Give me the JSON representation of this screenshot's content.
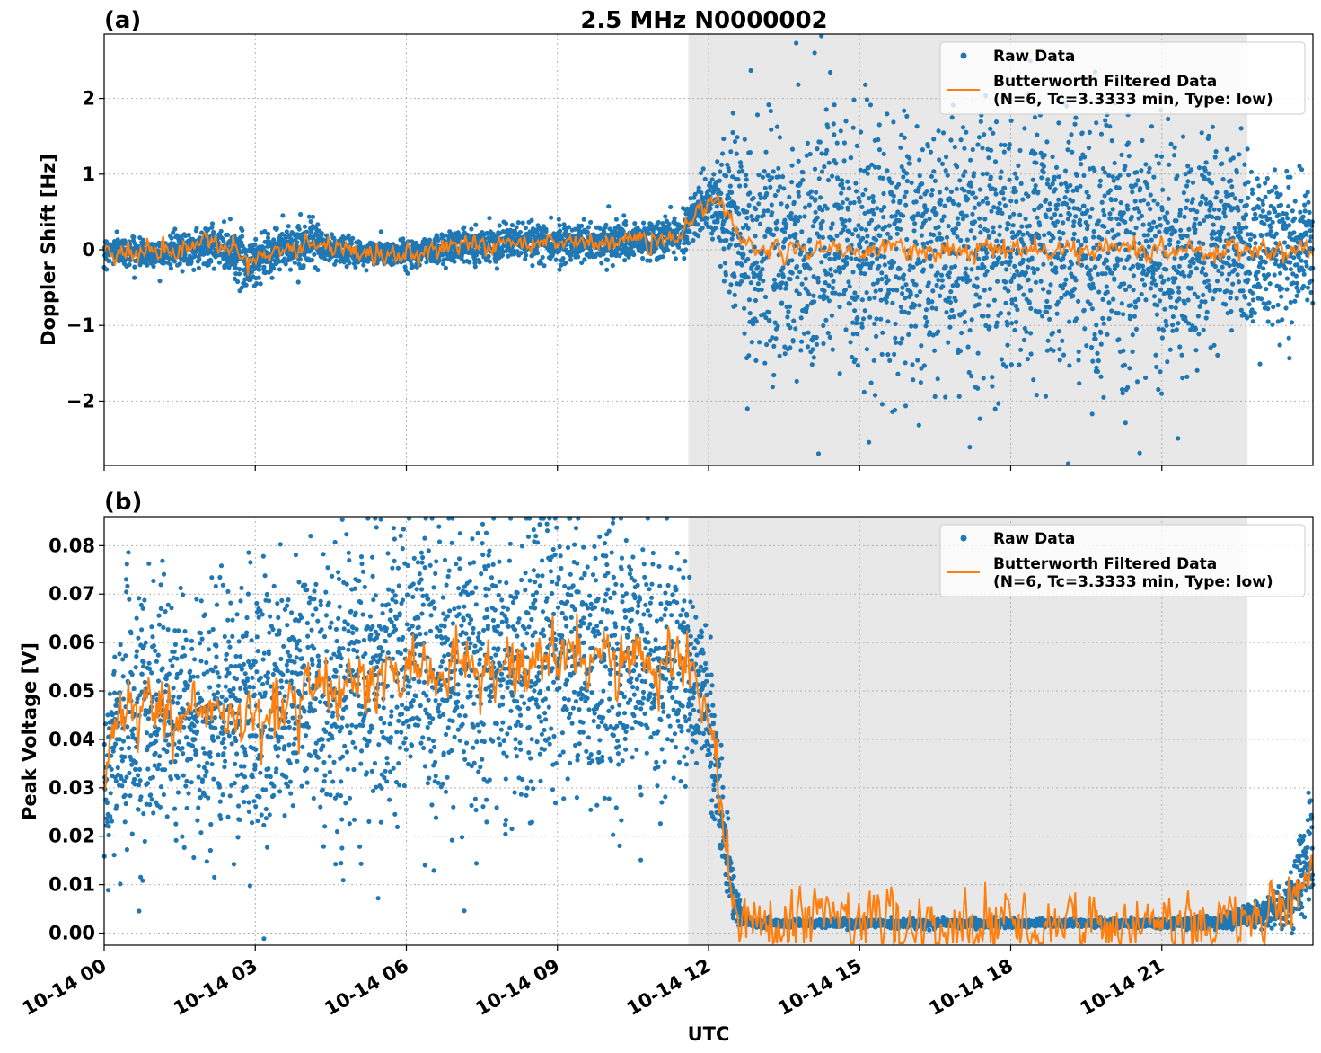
{
  "figure": {
    "title": "2.5 MHz N0000002",
    "xlabel": "UTC"
  },
  "chart_data": [
    {
      "panel_label": "(a)",
      "type": "scatter",
      "ylabel": "Doppler Shift [Hz]",
      "xlim": [
        "2023-10-14T00:00",
        "2023-10-14T24:00"
      ],
      "ylim": [
        -2.85,
        2.85
      ],
      "yticks": [
        -2,
        -1,
        0,
        1,
        2
      ],
      "ytick_labels": [
        "−2",
        "−1",
        "0",
        "1",
        "2"
      ],
      "xticks_hours": [
        0,
        3,
        6,
        9,
        12,
        15,
        18,
        21
      ],
      "xtick_labels": [
        "10-14 00",
        "10-14 03",
        "10-14 06",
        "10-14 09",
        "10-14 12",
        "10-14 15",
        "10-14 18",
        "10-14 21"
      ],
      "grid": true,
      "shaded_interval_hours": [
        11.6,
        22.7
      ],
      "legend_position": "top-right",
      "series": [
        {
          "name": "Raw Data",
          "kind": "scatter",
          "color": "#1f77b4",
          "x_hours": [
            0,
            1,
            2,
            2.5,
            2.9,
            3.2,
            4,
            4.3,
            5,
            6,
            7,
            8,
            9,
            10,
            11,
            11.4,
            11.7,
            12,
            12.2,
            12.5,
            12.8,
            13,
            14,
            15,
            16,
            17,
            18,
            19,
            20,
            21,
            22,
            23,
            24
          ],
          "center": [
            0.0,
            -0.05,
            0.05,
            0.0,
            -0.2,
            -0.05,
            0.1,
            0.05,
            -0.05,
            -0.05,
            0.05,
            0.1,
            0.1,
            0.1,
            0.12,
            0.2,
            0.45,
            0.6,
            0.65,
            0.3,
            0.05,
            0.0,
            0.0,
            0.0,
            0.0,
            0.0,
            0.0,
            0.0,
            0.0,
            0.0,
            0.0,
            0.0,
            0.0
          ],
          "spread": [
            0.2,
            0.2,
            0.3,
            0.35,
            0.5,
            0.35,
            0.3,
            0.25,
            0.2,
            0.2,
            0.25,
            0.25,
            0.3,
            0.3,
            0.3,
            0.35,
            0.4,
            0.45,
            0.55,
            1.5,
            2.0,
            2.0,
            2.0,
            2.0,
            2.0,
            2.0,
            2.0,
            2.0,
            2.0,
            1.9,
            1.7,
            1.2,
            1.0
          ]
        },
        {
          "name": "Butterworth Filtered Data\n(N=6, Tc=3.3333 min, Type: low)",
          "kind": "line",
          "color": "#ff7f0e",
          "x_hours": [
            0,
            1,
            2,
            2.5,
            2.9,
            3.2,
            4,
            4.3,
            5,
            6,
            7,
            8,
            9,
            10,
            11,
            11.4,
            11.7,
            12,
            12.2,
            12.5,
            12.8,
            13,
            14,
            15,
            16,
            17,
            18,
            19,
            20,
            21,
            22,
            23,
            24
          ],
          "y": [
            0.0,
            -0.05,
            0.05,
            0.0,
            -0.2,
            -0.05,
            0.1,
            0.05,
            -0.05,
            -0.05,
            0.05,
            0.1,
            0.1,
            0.1,
            0.12,
            0.2,
            0.45,
            0.6,
            0.65,
            0.3,
            0.05,
            0.0,
            0.0,
            0.0,
            0.0,
            0.0,
            0.0,
            0.0,
            0.0,
            0.0,
            0.0,
            0.0,
            0.0
          ],
          "noise": 0.1
        }
      ]
    },
    {
      "panel_label": "(b)",
      "type": "scatter",
      "ylabel": "Peak Voltage [V]",
      "xlim": [
        "2023-10-14T00:00",
        "2023-10-14T24:00"
      ],
      "ylim": [
        -0.0025,
        0.086
      ],
      "yticks": [
        0.0,
        0.01,
        0.02,
        0.03,
        0.04,
        0.05,
        0.06,
        0.07,
        0.08
      ],
      "ytick_labels": [
        "0.00",
        "0.01",
        "0.02",
        "0.03",
        "0.04",
        "0.05",
        "0.06",
        "0.07",
        "0.08"
      ],
      "xticks_hours": [
        0,
        3,
        6,
        9,
        12,
        15,
        18,
        21
      ],
      "xtick_labels": [
        "10-14 00",
        "10-14 03",
        "10-14 06",
        "10-14 09",
        "10-14 12",
        "10-14 15",
        "10-14 18",
        "10-14 21"
      ],
      "grid": true,
      "shaded_interval_hours": [
        11.6,
        22.7
      ],
      "legend_position": "top-right",
      "series": [
        {
          "name": "Raw Data",
          "kind": "scatter",
          "color": "#1f77b4",
          "x_hours": [
            0,
            0.15,
            0.5,
            1,
            2,
            3,
            4,
            5,
            6,
            7,
            8,
            9,
            10,
            11,
            11.5,
            11.9,
            12.1,
            12.3,
            12.5,
            12.7,
            12.9,
            13.2,
            14,
            16,
            18,
            20,
            21,
            22,
            22.5,
            23,
            23.5,
            23.8,
            24
          ],
          "center": [
            0.03,
            0.04,
            0.045,
            0.045,
            0.045,
            0.045,
            0.05,
            0.05,
            0.055,
            0.055,
            0.055,
            0.058,
            0.058,
            0.055,
            0.055,
            0.048,
            0.038,
            0.022,
            0.008,
            0.003,
            0.002,
            0.002,
            0.002,
            0.002,
            0.002,
            0.002,
            0.002,
            0.002,
            0.003,
            0.004,
            0.006,
            0.012,
            0.02
          ],
          "spread": [
            0.02,
            0.025,
            0.03,
            0.03,
            0.03,
            0.035,
            0.035,
            0.035,
            0.035,
            0.035,
            0.035,
            0.035,
            0.035,
            0.03,
            0.025,
            0.02,
            0.018,
            0.012,
            0.005,
            0.0015,
            0.001,
            0.001,
            0.001,
            0.001,
            0.001,
            0.001,
            0.001,
            0.0015,
            0.002,
            0.003,
            0.006,
            0.012,
            0.02
          ]
        },
        {
          "name": "Butterworth Filtered Data\n(N=6, Tc=3.3333 min, Type: low)",
          "kind": "line",
          "color": "#ff7f0e",
          "x_hours": [
            0,
            0.15,
            0.5,
            1,
            2,
            3,
            4,
            5,
            6,
            7,
            8,
            9,
            10,
            11,
            11.5,
            11.9,
            12.1,
            12.3,
            12.5,
            12.7,
            12.9,
            13.2,
            14,
            16,
            18,
            20,
            21,
            22,
            22.5,
            23,
            23.5,
            23.8,
            24
          ],
          "y": [
            0.03,
            0.04,
            0.045,
            0.045,
            0.045,
            0.045,
            0.05,
            0.05,
            0.055,
            0.055,
            0.055,
            0.058,
            0.058,
            0.055,
            0.055,
            0.048,
            0.038,
            0.022,
            0.008,
            0.003,
            0.002,
            0.002,
            0.002,
            0.002,
            0.002,
            0.002,
            0.002,
            0.002,
            0.003,
            0.004,
            0.006,
            0.012,
            0.015
          ],
          "noise": 0.005
        }
      ]
    }
  ]
}
